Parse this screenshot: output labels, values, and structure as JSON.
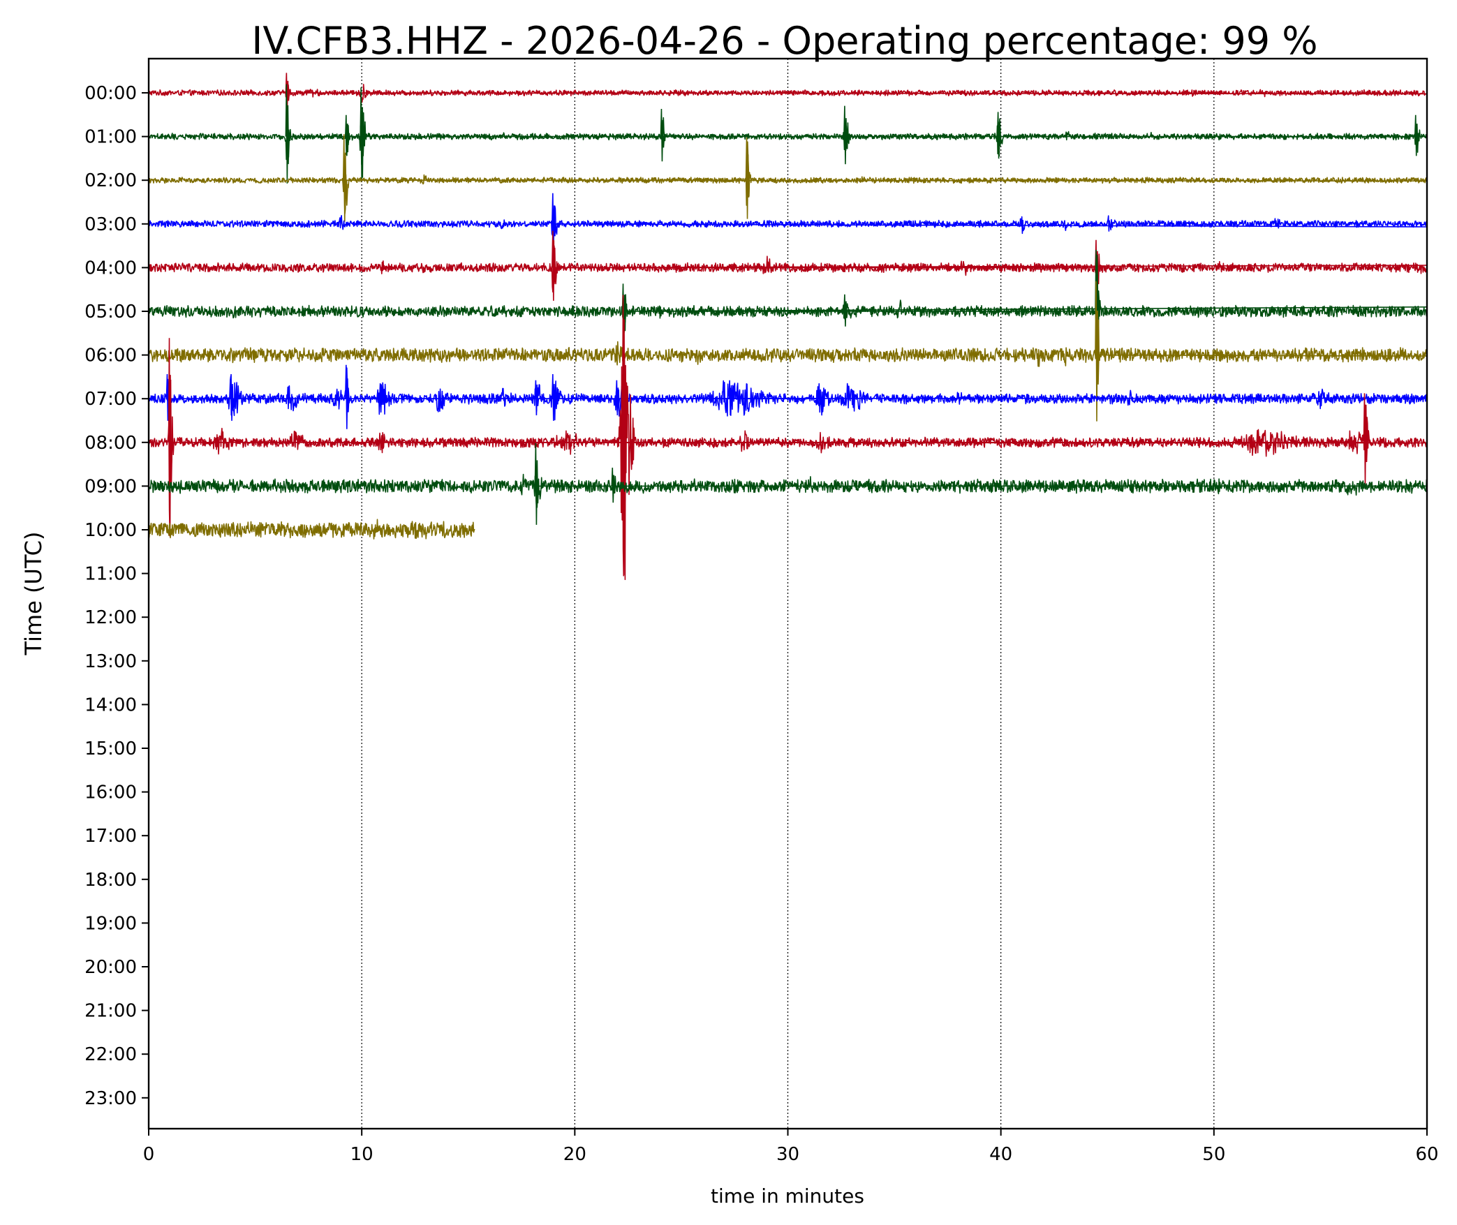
{
  "chart_data": {
    "type": "line",
    "title": "IV.CFB3.HHZ - 2026-04-26 - Operating percentage: 99 %",
    "xlabel": "time in minutes",
    "ylabel": "Time (UTC)",
    "xlim": [
      0,
      60
    ],
    "x_ticks": [
      0,
      10,
      20,
      30,
      40,
      50,
      60
    ],
    "x_tick_labels": [
      "0",
      "10",
      "20",
      "30",
      "40",
      "50",
      "60"
    ],
    "grid": "vertical dotted lines at x ticks",
    "hour_labels": [
      "00:00",
      "01:00",
      "02:00",
      "03:00",
      "04:00",
      "05:00",
      "06:00",
      "07:00",
      "08:00",
      "09:00",
      "10:00",
      "11:00",
      "12:00",
      "13:00",
      "14:00",
      "15:00",
      "16:00",
      "17:00",
      "18:00",
      "19:00",
      "20:00",
      "21:00",
      "22:00",
      "23:00"
    ],
    "trace_colors": [
      "#b30015",
      "#004d0f",
      "#7f6d00",
      "#0000ff"
    ],
    "series": [
      {
        "hour": "00:00",
        "color": "#b30015",
        "end_min": 60,
        "noise": 1.0,
        "events": [
          {
            "t": 6.5,
            "amp": 6.5,
            "dur": 0.1
          },
          {
            "t": 7.7,
            "amp": 1.4,
            "dur": 0.15
          },
          {
            "t": 10.0,
            "amp": 3,
            "dur": 0.15
          },
          {
            "t": 31.6,
            "amp": 0.8,
            "dur": 0.1
          },
          {
            "t": 49.0,
            "amp": 1.5,
            "dur": 0.15
          },
          {
            "t": 52.3,
            "amp": 0.8,
            "dur": 0.15
          }
        ]
      },
      {
        "hour": "01:00",
        "color": "#004d0f",
        "end_min": 60,
        "noise": 1.1,
        "events": [
          {
            "t": 6.5,
            "amp": 17,
            "dur": 0.08
          },
          {
            "t": 9.3,
            "amp": 7,
            "dur": 0.1
          },
          {
            "t": 10.0,
            "amp": 16,
            "dur": 0.12
          },
          {
            "t": 4.6,
            "amp": 1,
            "dur": 0.1
          },
          {
            "t": 16.6,
            "amp": 1,
            "dur": 0.1
          },
          {
            "t": 24.1,
            "amp": 9,
            "dur": 0.08
          },
          {
            "t": 32.7,
            "amp": 10,
            "dur": 0.1
          },
          {
            "t": 39.9,
            "amp": 8,
            "dur": 0.12
          },
          {
            "t": 43.1,
            "amp": 2,
            "dur": 0.1
          },
          {
            "t": 47.0,
            "amp": 1.2,
            "dur": 0.1
          },
          {
            "t": 50.2,
            "amp": 1.2,
            "dur": 0.1
          },
          {
            "t": 59.5,
            "amp": 7,
            "dur": 0.1
          }
        ]
      },
      {
        "hour": "02:00",
        "color": "#7f6d00",
        "end_min": 60,
        "noise": 1.0,
        "events": [
          {
            "t": 9.2,
            "amp": 15,
            "dur": 0.1
          },
          {
            "t": 12.9,
            "amp": 1.5,
            "dur": 0.12
          },
          {
            "t": 28.1,
            "amp": 14,
            "dur": 0.1
          },
          {
            "t": 33.5,
            "amp": 1.5,
            "dur": 0.1
          },
          {
            "t": 52.4,
            "amp": 1.2,
            "dur": 0.1
          }
        ]
      },
      {
        "hour": "03:00",
        "color": "#0000ff",
        "end_min": 60,
        "noise": 1.2,
        "events": [
          {
            "t": 9.0,
            "amp": 3.5,
            "dur": 0.12
          },
          {
            "t": 16.6,
            "amp": 1.5,
            "dur": 0.1
          },
          {
            "t": 19.0,
            "amp": 10,
            "dur": 0.12
          },
          {
            "t": 41.0,
            "amp": 3,
            "dur": 0.2
          },
          {
            "t": 43.0,
            "amp": 1.3,
            "dur": 0.15
          },
          {
            "t": 45.0,
            "amp": 2.5,
            "dur": 0.2
          },
          {
            "t": 52.9,
            "amp": 1.8,
            "dur": 0.15
          }
        ]
      },
      {
        "hour": "04:00",
        "color": "#b30015",
        "end_min": 60,
        "noise": 1.6,
        "events": [
          {
            "t": 19.0,
            "amp": 12,
            "dur": 0.12
          },
          {
            "t": 11.0,
            "amp": 2,
            "dur": 0.15
          },
          {
            "t": 12.9,
            "amp": 1.8,
            "dur": 0.15
          },
          {
            "t": 14.7,
            "amp": 1.5,
            "dur": 0.15
          },
          {
            "t": 29.0,
            "amp": 2.5,
            "dur": 0.3
          },
          {
            "t": 38.2,
            "amp": 2.3,
            "dur": 0.15
          },
          {
            "t": 44.5,
            "amp": 9,
            "dur": 0.1
          },
          {
            "t": 50.3,
            "amp": 1.8,
            "dur": 0.2
          },
          {
            "t": 59.5,
            "amp": 1.4,
            "dur": 0.3
          }
        ]
      },
      {
        "hour": "05:00",
        "color": "#004d0f",
        "end_min": 60,
        "noise": 2.0,
        "events": [
          {
            "t": 3.8,
            "amp": 2,
            "dur": 0.3
          },
          {
            "t": 19.9,
            "amp": 1.5,
            "dur": 0.15
          },
          {
            "t": 22.3,
            "amp": 9,
            "dur": 0.1
          },
          {
            "t": 23.9,
            "amp": 1.8,
            "dur": 0.15
          },
          {
            "t": 32.7,
            "amp": 5.5,
            "dur": 0.15
          },
          {
            "t": 35.2,
            "amp": 3,
            "dur": 0.15
          },
          {
            "t": 44.5,
            "amp": 20,
            "dur": 0.08
          }
        ]
      },
      {
        "hour": "06:00",
        "color": "#7f6d00",
        "end_min": 60,
        "noise": 2.5,
        "events": [
          {
            "t": 3.0,
            "amp": 1.8,
            "dur": 0.15
          },
          {
            "t": 22.0,
            "amp": 3,
            "dur": 0.2
          },
          {
            "t": 25.7,
            "amp": 1.5,
            "dur": 0.3
          },
          {
            "t": 41.8,
            "amp": 2,
            "dur": 0.2
          },
          {
            "t": 43.0,
            "amp": 2.5,
            "dur": 0.15
          },
          {
            "t": 44.5,
            "amp": 24,
            "dur": 0.08
          }
        ]
      },
      {
        "hour": "07:00",
        "color": "#0000ff",
        "end_min": 60,
        "noise": 1.8,
        "events": [
          {
            "t": 0.9,
            "amp": 8,
            "dur": 0.1
          },
          {
            "t": 3.9,
            "amp": 8,
            "dur": 0.3
          },
          {
            "t": 6.6,
            "amp": 4,
            "dur": 0.3
          },
          {
            "t": 8.8,
            "amp": 4,
            "dur": 0.2
          },
          {
            "t": 9.3,
            "amp": 11,
            "dur": 0.1
          },
          {
            "t": 10.9,
            "amp": 5,
            "dur": 0.3
          },
          {
            "t": 13.6,
            "amp": 4,
            "dur": 0.3
          },
          {
            "t": 16.6,
            "amp": 3,
            "dur": 0.2
          },
          {
            "t": 18.2,
            "amp": 6,
            "dur": 0.2
          },
          {
            "t": 19.0,
            "amp": 8,
            "dur": 0.2
          },
          {
            "t": 22.0,
            "amp": 6,
            "dur": 0.3
          },
          {
            "t": 27.3,
            "amp": 6,
            "dur": 1.1
          },
          {
            "t": 31.5,
            "amp": 5,
            "dur": 0.3
          },
          {
            "t": 32.8,
            "amp": 4,
            "dur": 0.6
          },
          {
            "t": 38.0,
            "amp": 2,
            "dur": 0.2
          },
          {
            "t": 46.0,
            "amp": 2,
            "dur": 0.2
          },
          {
            "t": 55.0,
            "amp": 3,
            "dur": 0.2
          },
          {
            "t": 57.2,
            "amp": 2,
            "dur": 0.2
          }
        ]
      },
      {
        "hour": "08:00",
        "color": "#b30015",
        "end_min": 60,
        "noise": 1.8,
        "events": [
          {
            "t": 1.0,
            "amp": 34,
            "dur": 0.08
          },
          {
            "t": 3.3,
            "amp": 3.5,
            "dur": 0.5
          },
          {
            "t": 6.8,
            "amp": 4,
            "dur": 0.3
          },
          {
            "t": 10.9,
            "amp": 4,
            "dur": 0.2
          },
          {
            "t": 19.5,
            "amp": 3,
            "dur": 0.5
          },
          {
            "t": 22.3,
            "amp": 48,
            "dur": 0.25
          },
          {
            "t": 27.9,
            "amp": 4,
            "dur": 0.2
          },
          {
            "t": 31.5,
            "amp": 3,
            "dur": 0.2
          },
          {
            "t": 52.0,
            "amp": 4,
            "dur": 1.2
          },
          {
            "t": 56.5,
            "amp": 3.5,
            "dur": 0.4
          },
          {
            "t": 57.1,
            "amp": 16,
            "dur": 0.1
          }
        ]
      },
      {
        "hour": "09:00",
        "color": "#004d0f",
        "end_min": 60,
        "noise": 2.4,
        "events": [
          {
            "t": 18.2,
            "amp": 14,
            "dur": 0.12
          },
          {
            "t": 17.5,
            "amp": 2,
            "dur": 0.2
          },
          {
            "t": 21.8,
            "amp": 6,
            "dur": 0.1
          },
          {
            "t": 31.0,
            "amp": 1.5,
            "dur": 0.2
          },
          {
            "t": 50.2,
            "amp": 1.5,
            "dur": 0.2
          },
          {
            "t": 56.4,
            "amp": 2,
            "dur": 0.3
          }
        ]
      },
      {
        "hour": "10:00",
        "color": "#7f6d00",
        "end_min": 15.3,
        "noise": 2.8,
        "events": [
          {
            "t": 10.5,
            "amp": 1.5,
            "dur": 0.3
          },
          {
            "t": 12.5,
            "amp": 1.3,
            "dur": 0.3
          }
        ]
      }
    ]
  }
}
